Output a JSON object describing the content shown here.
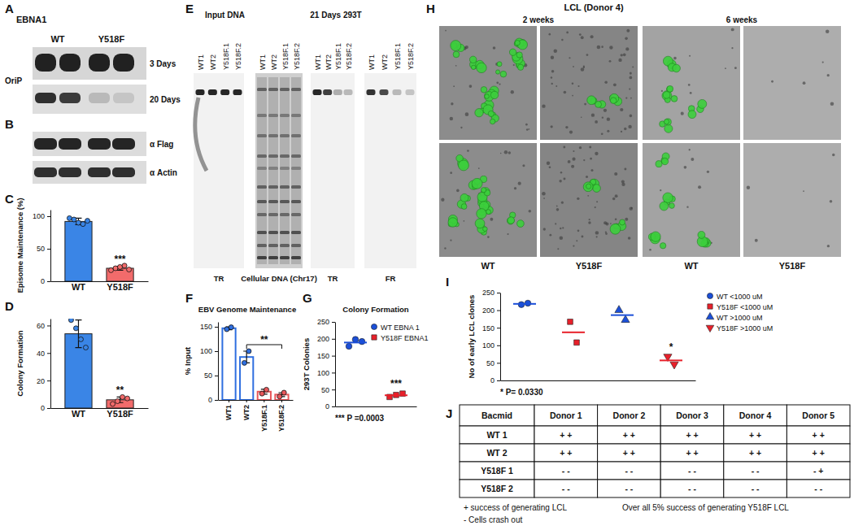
{
  "panel_labels": [
    "A",
    "B",
    "C",
    "D",
    "E",
    "F",
    "G",
    "H",
    "I",
    "J"
  ],
  "chart_data": [
    {
      "type": "bar",
      "categories": [
        "WT",
        "Y518F"
      ],
      "values": [
        92,
        20
      ],
      "errors": [
        5,
        3
      ],
      "points": [
        [
          97,
          95,
          90,
          88,
          93
        ],
        [
          17,
          20,
          22,
          24,
          18
        ]
      ],
      "colors": [
        "#3a85e6",
        "#f26b6b"
      ],
      "y_label": "Episome Maintenance (%)",
      "ylim": [
        0,
        110
      ],
      "yticks": [
        0,
        50,
        100
      ],
      "annotations": [
        {
          "text": "***",
          "category": "Y518F"
        }
      ]
    },
    {
      "type": "bar",
      "categories": [
        "WT",
        "Y518F"
      ],
      "values": [
        54,
        6
      ],
      "errors": [
        10,
        2
      ],
      "points": [
        [
          64,
          58,
          50,
          44
        ],
        [
          3,
          5,
          8,
          7
        ]
      ],
      "colors": [
        "#3a85e6",
        "#f26b6b"
      ],
      "y_label": "Colony Formation",
      "ylim": [
        0,
        65
      ],
      "yticks": [
        0,
        20,
        40,
        60
      ],
      "annotations": [
        {
          "text": "**",
          "category": "Y518F"
        }
      ]
    },
    {
      "type": "bar",
      "title": "EBV Genome Maintenance",
      "categories": [
        "WT1",
        "WT2",
        "Y518F.1",
        "Y518F.2"
      ],
      "values": [
        147,
        88,
        17,
        11
      ],
      "errors": [
        3,
        12,
        5,
        4
      ],
      "points": [
        [
          145,
          149
        ],
        [
          76,
          100
        ],
        [
          13,
          21
        ],
        [
          7,
          15
        ]
      ],
      "colors": [
        "#2f6fe0",
        "#2f6fe0",
        "#e8575a",
        "#e8575a"
      ],
      "y_label": "% Input",
      "ylim": [
        0,
        160
      ],
      "yticks": [
        0,
        50,
        100,
        150
      ],
      "annotations": [
        {
          "text": "**",
          "from": "WT2",
          "to": "Y518F.2"
        }
      ]
    },
    {
      "type": "scatter",
      "title": "Colony Formation",
      "y_label": "293T Colonies",
      "ylim": [
        0,
        250
      ],
      "yticks": [
        0,
        50,
        100,
        150,
        200,
        250
      ],
      "legend": "top-right",
      "series": [
        {
          "name": "WT EBNA 1",
          "color": "#1b4fd8",
          "marker": "circle",
          "values": [
            178,
            198,
            192
          ],
          "mean": 189
        },
        {
          "name": "Y518F EBNA1",
          "color": "#e8202a",
          "marker": "square",
          "values": [
            28,
            34,
            38
          ],
          "mean": 33
        }
      ],
      "annotations": [
        {
          "text": "***",
          "series": "Y518F EBNA1"
        },
        {
          "text": "*** P =0.0003"
        }
      ]
    },
    {
      "type": "scatter",
      "y_label": "No of early LCL clones",
      "ylim": [
        0,
        250
      ],
      "yticks": [
        0,
        50,
        100,
        150,
        200,
        250
      ],
      "legend": "right",
      "series": [
        {
          "name": "WT <1000 uM",
          "color": "#1b4fd8",
          "marker": "circle",
          "values": [
            216,
            220
          ],
          "mean": 218
        },
        {
          "name": "Y518F <1000 uM",
          "color": "#e8202a",
          "marker": "square",
          "values": [
            167,
            108
          ],
          "mean": 137
        },
        {
          "name": "WT >1000 uM",
          "color": "#1b4fd8",
          "marker": "triangle",
          "values": [
            200,
            172
          ],
          "mean": 186
        },
        {
          "name": "Y518F >1000 uM",
          "color": "#e8202a",
          "marker": "triangle-down",
          "values": [
            68,
            46
          ],
          "mean": 57
        }
      ],
      "annotations": [
        {
          "text": "*",
          "series": "Y518F >1000 uM"
        },
        {
          "text": "* P= 0.0330"
        }
      ]
    }
  ],
  "panel_A": {
    "title": "EBNA1",
    "lanes": [
      "WT",
      "Y518F"
    ],
    "probe": "OriP",
    "blots": [
      "3 Days",
      "20 Days"
    ]
  },
  "panel_B": {
    "blots": [
      "α Flag",
      "α Actin"
    ]
  },
  "panel_E": {
    "headers": [
      "Input DNA",
      "21 Days 293T"
    ],
    "lanes": [
      "WT1",
      "WT2",
      "Y518F.1",
      "Y518F.2"
    ],
    "blots": [
      "TR",
      "Cellular DNA (Chr17)",
      "TR",
      "FR"
    ]
  },
  "panel_H": {
    "title": "LCL (Donor 4)",
    "times": [
      "2 weeks",
      "6 weeks"
    ],
    "columns": [
      "WT",
      "Y518F"
    ]
  },
  "panel_J": {
    "table": {
      "header": [
        "Bacmid",
        "Donor 1",
        "Donor 2",
        "Donor 3",
        "Donor 4",
        "Donor 5"
      ],
      "rows": [
        [
          "WT 1",
          "+ +",
          "+ +",
          "+ +",
          "+ +",
          "+ +"
        ],
        [
          "WT 2",
          "+ +",
          "+ +",
          "+ +",
          "+ +",
          "+ +"
        ],
        [
          "Y518F 1",
          "- -",
          "- -",
          "- -",
          "- -",
          "- +"
        ],
        [
          "Y518F 2",
          "- -",
          "- -",
          "- -",
          "- -",
          "- -"
        ]
      ]
    },
    "notes": [
      "+ success of generating LCL",
      "Over all 5% success of generating Y518F LCL",
      "- Cells crash out"
    ]
  }
}
